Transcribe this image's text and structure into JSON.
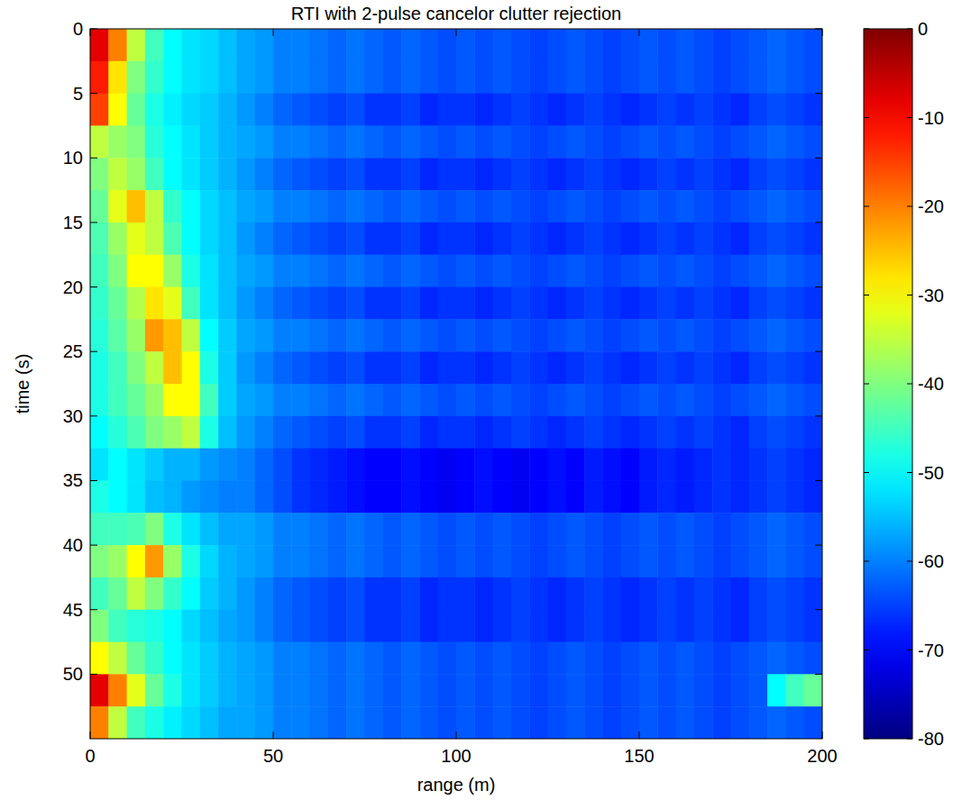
{
  "chart_data": {
    "type": "heatmap",
    "title": "RTI with 2-pulse cancelor clutter rejection",
    "x_label": "range (m)",
    "y_label": "time (s)",
    "xlim": [
      0,
      200
    ],
    "ylim": [
      0,
      55
    ],
    "xticks": [
      0,
      50,
      100,
      150,
      200
    ],
    "yticks": [
      0,
      5,
      10,
      15,
      20,
      25,
      30,
      35,
      40,
      45,
      50
    ],
    "x": [
      2.5,
      7.5,
      12.5,
      17.5,
      22.5,
      27.5,
      32.5,
      37.5,
      42.5,
      47.5,
      52.5,
      57.5,
      62.5,
      67.5,
      72.5,
      77.5,
      82.5,
      87.5,
      92.5,
      97.5,
      102.5,
      107.5,
      112.5,
      117.5,
      122.5,
      127.5,
      132.5,
      137.5,
      142.5,
      147.5,
      152.5,
      157.5,
      162.5,
      167.5,
      172.5,
      177.5,
      182.5,
      187.5,
      192.5,
      197.5
    ],
    "y": [
      1.25,
      3.75,
      6.25,
      8.75,
      11.25,
      13.75,
      16.25,
      18.75,
      21.25,
      23.75,
      26.25,
      28.75,
      31.25,
      33.75,
      36.25,
      38.75,
      41.25,
      43.75,
      46.25,
      48.75,
      51.25,
      53.75
    ],
    "values": [
      [
        -8,
        -20,
        -35,
        -45,
        -50,
        -52,
        -53,
        -55,
        -57,
        -58,
        -60,
        -60,
        -61,
        -62,
        -61,
        -62,
        -63,
        -62,
        -63,
        -64,
        -63,
        -64,
        -63,
        -64,
        -65,
        -64,
        -63,
        -64,
        -65,
        -64,
        -63,
        -64,
        -63,
        -64,
        -65,
        -64,
        -63,
        -62,
        -63,
        -64
      ],
      [
        -12,
        -28,
        -40,
        -46,
        -50,
        -52,
        -53,
        -55,
        -57,
        -58,
        -60,
        -60,
        -61,
        -62,
        -61,
        -62,
        -63,
        -62,
        -63,
        -64,
        -63,
        -64,
        -63,
        -64,
        -65,
        -64,
        -63,
        -64,
        -65,
        -64,
        -63,
        -64,
        -63,
        -64,
        -65,
        -64,
        -63,
        -62,
        -63,
        -64
      ],
      [
        -15,
        -30,
        -42,
        -48,
        -51,
        -53,
        -54,
        -56,
        -58,
        -60,
        -62,
        -63,
        -64,
        -65,
        -64,
        -66,
        -66,
        -65,
        -67,
        -66,
        -66,
        -67,
        -66,
        -65,
        -66,
        -67,
        -66,
        -65,
        -66,
        -67,
        -66,
        -65,
        -66,
        -65,
        -66,
        -67,
        -65,
        -64,
        -65,
        -66
      ],
      [
        -35,
        -38,
        -40,
        -47,
        -50,
        -52,
        -54,
        -56,
        -57,
        -58,
        -60,
        -60,
        -61,
        -62,
        -61,
        -62,
        -63,
        -62,
        -63,
        -64,
        -63,
        -64,
        -63,
        -64,
        -65,
        -64,
        -63,
        -64,
        -65,
        -64,
        -63,
        -64,
        -63,
        -64,
        -65,
        -64,
        -63,
        -62,
        -63,
        -64
      ],
      [
        -40,
        -35,
        -38,
        -45,
        -50,
        -52,
        -54,
        -56,
        -58,
        -60,
        -62,
        -63,
        -64,
        -65,
        -64,
        -66,
        -66,
        -65,
        -67,
        -66,
        -66,
        -67,
        -66,
        -65,
        -66,
        -67,
        -66,
        -65,
        -66,
        -67,
        -66,
        -65,
        -66,
        -65,
        -66,
        -67,
        -65,
        -64,
        -65,
        -66
      ],
      [
        -42,
        -32,
        -25,
        -35,
        -46,
        -50,
        -53,
        -55,
        -57,
        -58,
        -60,
        -60,
        -61,
        -62,
        -61,
        -62,
        -63,
        -62,
        -63,
        -64,
        -63,
        -64,
        -63,
        -64,
        -65,
        -64,
        -63,
        -64,
        -65,
        -64,
        -63,
        -64,
        -63,
        -64,
        -65,
        -64,
        -63,
        -62,
        -63,
        -64
      ],
      [
        -44,
        -38,
        -32,
        -35,
        -44,
        -50,
        -53,
        -55,
        -58,
        -60,
        -62,
        -63,
        -64,
        -65,
        -64,
        -66,
        -66,
        -65,
        -67,
        -66,
        -66,
        -67,
        -66,
        -65,
        -66,
        -67,
        -66,
        -65,
        -66,
        -67,
        -66,
        -65,
        -66,
        -65,
        -66,
        -67,
        -65,
        -64,
        -65,
        -66
      ],
      [
        -45,
        -40,
        -30,
        -30,
        -38,
        -48,
        -52,
        -55,
        -57,
        -58,
        -60,
        -60,
        -61,
        -62,
        -61,
        -62,
        -63,
        -62,
        -63,
        -64,
        -63,
        -64,
        -63,
        -64,
        -65,
        -64,
        -63,
        -64,
        -65,
        -64,
        -63,
        -64,
        -63,
        -64,
        -65,
        -64,
        -63,
        -62,
        -63,
        -64
      ],
      [
        -46,
        -42,
        -36,
        -28,
        -32,
        -45,
        -52,
        -55,
        -58,
        -60,
        -62,
        -63,
        -64,
        -65,
        -64,
        -66,
        -66,
        -65,
        -67,
        -66,
        -66,
        -67,
        -66,
        -65,
        -66,
        -67,
        -66,
        -65,
        -66,
        -67,
        -66,
        -65,
        -66,
        -65,
        -66,
        -67,
        -65,
        -64,
        -65,
        -66
      ],
      [
        -47,
        -43,
        -38,
        -22,
        -25,
        -35,
        -50,
        -54,
        -57,
        -58,
        -60,
        -60,
        -61,
        -62,
        -61,
        -62,
        -63,
        -62,
        -63,
        -64,
        -63,
        -64,
        -63,
        -64,
        -65,
        -64,
        -63,
        -64,
        -65,
        -64,
        -63,
        -64,
        -63,
        -64,
        -65,
        -64,
        -63,
        -62,
        -63,
        -64
      ],
      [
        -48,
        -45,
        -40,
        -35,
        -25,
        -30,
        -48,
        -54,
        -58,
        -60,
        -62,
        -63,
        -64,
        -65,
        -64,
        -66,
        -66,
        -65,
        -67,
        -66,
        -66,
        -67,
        -66,
        -65,
        -66,
        -67,
        -66,
        -65,
        -66,
        -67,
        -66,
        -65,
        -66,
        -65,
        -66,
        -67,
        -65,
        -64,
        -65,
        -66
      ],
      [
        -48,
        -45,
        -42,
        -38,
        -30,
        -30,
        -45,
        -54,
        -57,
        -58,
        -60,
        -60,
        -61,
        -62,
        -61,
        -62,
        -63,
        -62,
        -63,
        -64,
        -63,
        -64,
        -63,
        -64,
        -65,
        -64,
        -63,
        -64,
        -65,
        -64,
        -63,
        -64,
        -63,
        -64,
        -65,
        -64,
        -63,
        -62,
        -63,
        -64
      ],
      [
        -50,
        -47,
        -44,
        -40,
        -38,
        -35,
        -48,
        -55,
        -58,
        -60,
        -62,
        -63,
        -64,
        -65,
        -64,
        -66,
        -66,
        -65,
        -67,
        -66,
        -66,
        -67,
        -66,
        -65,
        -66,
        -67,
        -66,
        -65,
        -66,
        -67,
        -66,
        -65,
        -66,
        -65,
        -66,
        -67,
        -65,
        -64,
        -65,
        -66
      ],
      [
        -52,
        -50,
        -52,
        -54,
        -56,
        -56,
        -58,
        -59,
        -60,
        -62,
        -64,
        -66,
        -67,
        -68,
        -69,
        -70,
        -70,
        -69,
        -70,
        -71,
        -70,
        -69,
        -70,
        -71,
        -70,
        -69,
        -70,
        -68,
        -69,
        -70,
        -68,
        -67,
        -68,
        -67,
        -66,
        -67,
        -66,
        -65,
        -66,
        -67
      ],
      [
        -48,
        -50,
        -52,
        -55,
        -56,
        -58,
        -59,
        -60,
        -60,
        -62,
        -64,
        -66,
        -67,
        -68,
        -69,
        -70,
        -70,
        -69,
        -70,
        -71,
        -70,
        -69,
        -70,
        -71,
        -70,
        -69,
        -70,
        -68,
        -69,
        -70,
        -68,
        -67,
        -68,
        -67,
        -66,
        -67,
        -66,
        -65,
        -66,
        -67
      ],
      [
        -45,
        -45,
        -44,
        -40,
        -48,
        -52,
        -55,
        -57,
        -57,
        -58,
        -60,
        -60,
        -61,
        -62,
        -61,
        -62,
        -63,
        -62,
        -63,
        -64,
        -63,
        -64,
        -63,
        -64,
        -65,
        -64,
        -63,
        -64,
        -65,
        -64,
        -63,
        -64,
        -63,
        -64,
        -65,
        -64,
        -63,
        -62,
        -63,
        -64
      ],
      [
        -40,
        -38,
        -30,
        -22,
        -38,
        -48,
        -53,
        -56,
        -57,
        -58,
        -60,
        -60,
        -61,
        -62,
        -61,
        -62,
        -63,
        -62,
        -63,
        -64,
        -63,
        -64,
        -63,
        -64,
        -65,
        -64,
        -63,
        -64,
        -65,
        -64,
        -63,
        -64,
        -63,
        -64,
        -65,
        -64,
        -63,
        -62,
        -63,
        -64
      ],
      [
        -45,
        -42,
        -35,
        -40,
        -46,
        -50,
        -54,
        -56,
        -58,
        -60,
        -62,
        -63,
        -64,
        -65,
        -64,
        -66,
        -66,
        -65,
        -67,
        -66,
        -66,
        -67,
        -66,
        -65,
        -66,
        -67,
        -66,
        -65,
        -66,
        -67,
        -66,
        -65,
        -66,
        -65,
        -66,
        -67,
        -65,
        -64,
        -65,
        -66
      ],
      [
        -40,
        -45,
        -47,
        -48,
        -50,
        -53,
        -55,
        -57,
        -58,
        -60,
        -62,
        -63,
        -64,
        -65,
        -64,
        -66,
        -66,
        -65,
        -67,
        -66,
        -66,
        -67,
        -66,
        -65,
        -66,
        -67,
        -66,
        -65,
        -66,
        -67,
        -66,
        -65,
        -66,
        -65,
        -66,
        -67,
        -65,
        -64,
        -65,
        -66
      ],
      [
        -30,
        -35,
        -42,
        -46,
        -50,
        -52,
        -54,
        -56,
        -57,
        -58,
        -60,
        -60,
        -61,
        -62,
        -61,
        -62,
        -63,
        -62,
        -63,
        -64,
        -63,
        -64,
        -63,
        -64,
        -65,
        -64,
        -63,
        -64,
        -65,
        -64,
        -63,
        -64,
        -63,
        -64,
        -65,
        -64,
        -63,
        -62,
        -63,
        -64
      ],
      [
        -8,
        -20,
        -32,
        -42,
        -48,
        -52,
        -54,
        -56,
        -57,
        -58,
        -60,
        -60,
        -61,
        -62,
        -61,
        -62,
        -63,
        -62,
        -63,
        -64,
        -63,
        -64,
        -63,
        -64,
        -65,
        -64,
        -63,
        -64,
        -65,
        -64,
        -63,
        -64,
        -63,
        -64,
        -65,
        -64,
        -63,
        -50,
        -45,
        -42
      ],
      [
        -20,
        -35,
        -45,
        -48,
        -51,
        -53,
        -55,
        -57,
        -57,
        -58,
        -60,
        -60,
        -61,
        -62,
        -61,
        -62,
        -63,
        -62,
        -63,
        -64,
        -63,
        -64,
        -63,
        -64,
        -65,
        -64,
        -63,
        -64,
        -65,
        -64,
        -63,
        -64,
        -63,
        -64,
        -65,
        -64,
        -63,
        -62,
        -63,
        -64
      ]
    ],
    "colorbar": {
      "range": [
        -80,
        0
      ],
      "ticks": [
        0,
        -10,
        -20,
        -30,
        -40,
        -50,
        -60,
        -70,
        -80
      ]
    }
  }
}
